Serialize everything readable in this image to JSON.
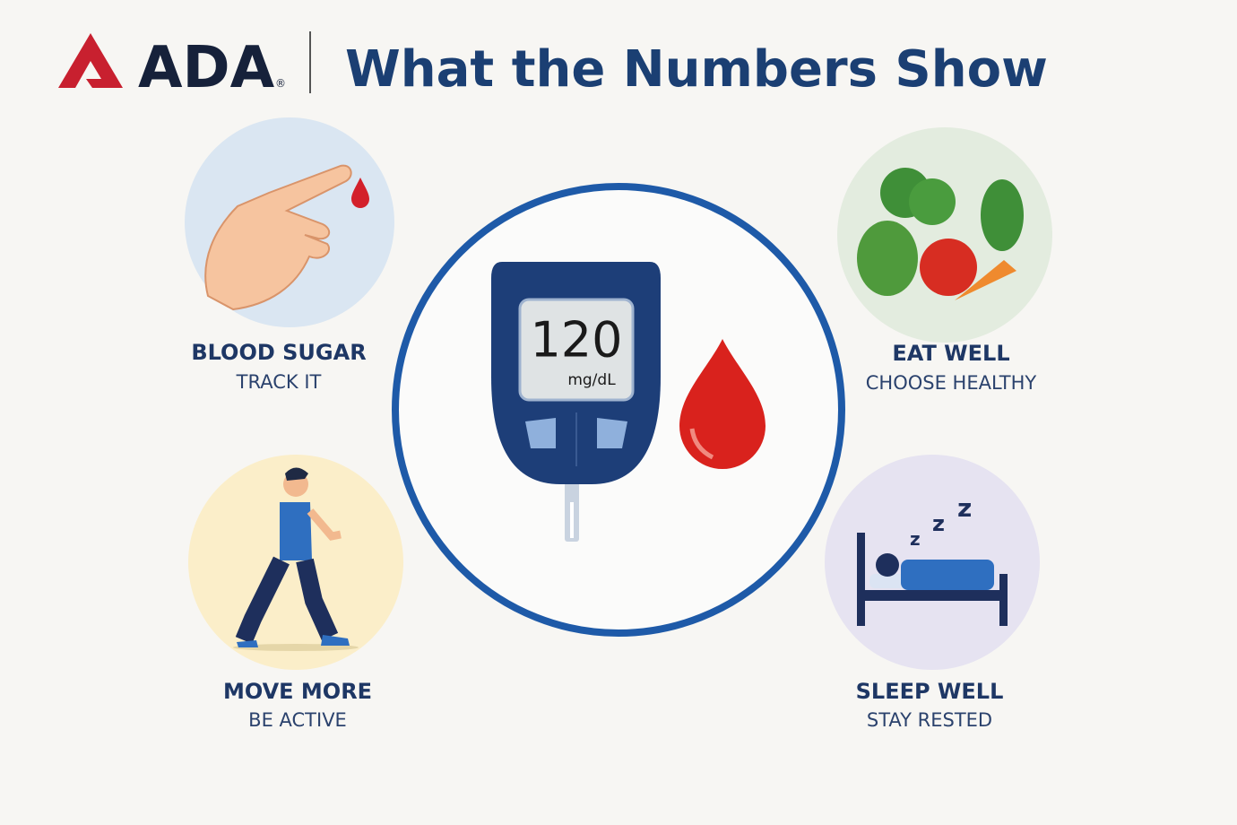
{
  "header": {
    "logo": "ADA",
    "registered": "®",
    "title": "What the Numbers Show"
  },
  "meter": {
    "reading": 120,
    "unit": "mg/dL"
  },
  "items": [
    {
      "title": "BLOOD SUGAR",
      "subtitle": "TRACK IT"
    },
    {
      "title": "MOVE MORE",
      "subtitle": "BE ACTIVE"
    },
    {
      "title": "EAT WELL",
      "subtitle": "CHOOSE HEALTHY"
    },
    {
      "title": "SLEEP WELL",
      "subtitle": "STAY RESTED"
    }
  ]
}
